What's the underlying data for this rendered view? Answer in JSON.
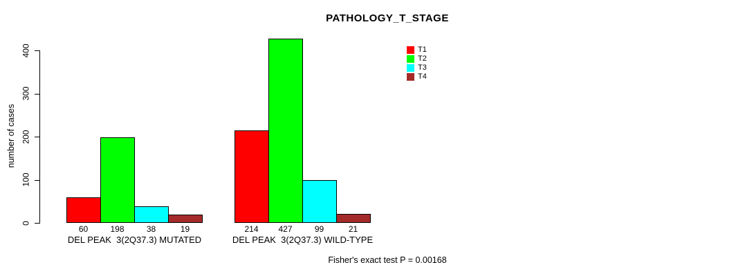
{
  "chart_data": {
    "type": "bar",
    "title": "PATHOLOGY_T_STAGE",
    "ylabel": "number of cases",
    "ylim": [
      0,
      400
    ],
    "yticks": [
      "0",
      "100",
      "200",
      "300",
      "400"
    ],
    "grid": false,
    "legend_position": "top-right",
    "categories": [
      "DEL PEAK  3(2Q37.3) MUTATED",
      "DEL PEAK  3(2Q37.3) WILD-TYPE"
    ],
    "series": [
      {
        "name": "T1",
        "color": "#FF0000",
        "values": [
          60,
          214
        ]
      },
      {
        "name": "T2",
        "color": "#00FF00",
        "values": [
          198,
          427
        ]
      },
      {
        "name": "T3",
        "color": "#00FFFF",
        "values": [
          38,
          99
        ]
      },
      {
        "name": "T4",
        "color": "#A52A2A",
        "values": [
          19,
          21
        ]
      }
    ],
    "bar_value_labels": [
      [
        "60",
        "198",
        "38",
        "19"
      ],
      [
        "214",
        "427",
        "99",
        "21"
      ]
    ],
    "annotation": "Fisher's exact test P = 0.00168",
    "colors": {
      "axis": "#000000",
      "bar_border": "#000000",
      "background": "#FFFFFF",
      "text": "#000000"
    }
  }
}
